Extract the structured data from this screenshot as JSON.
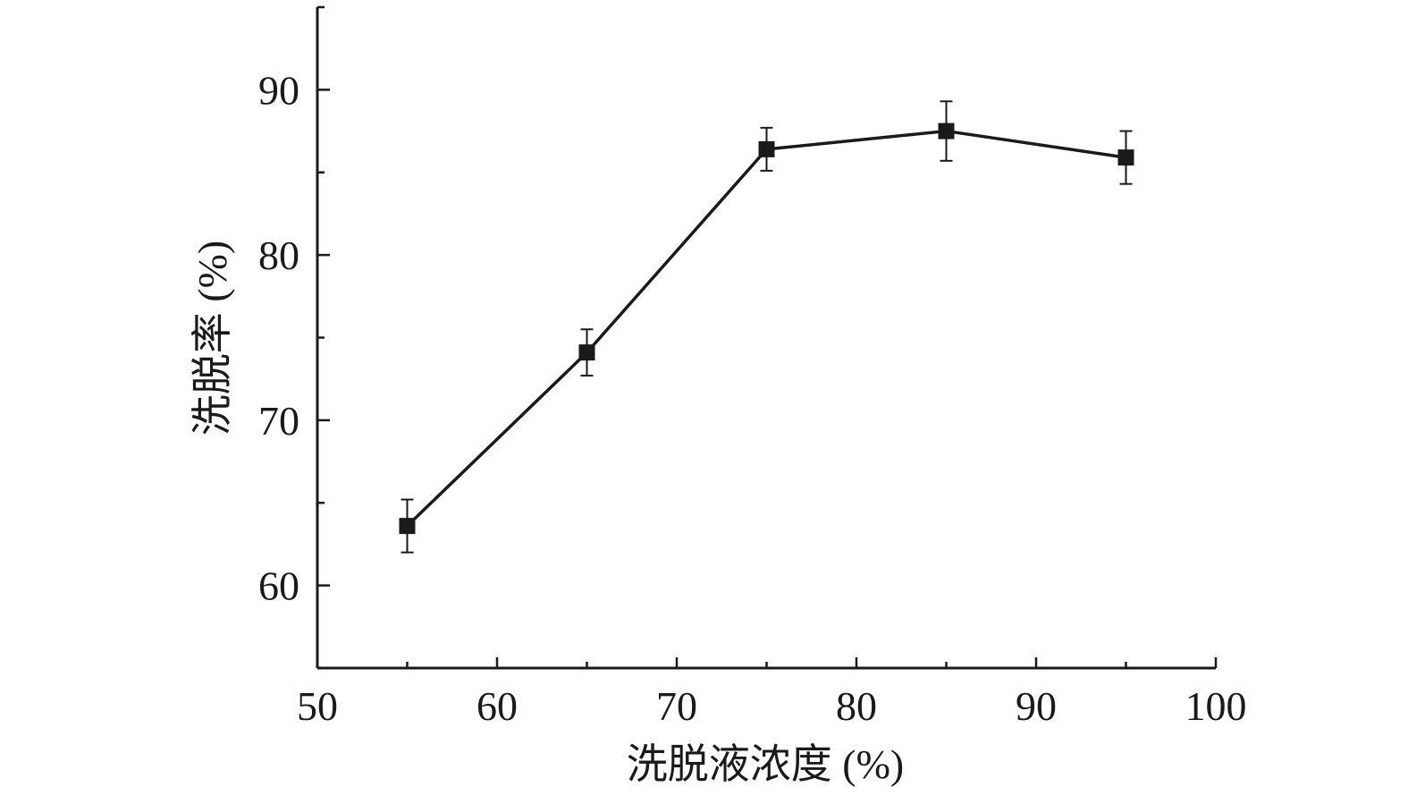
{
  "chart_data": {
    "type": "line",
    "xlabel": "洗脱液浓度 (%)",
    "ylabel": "洗脱率 (%)",
    "xlim": [
      50,
      100
    ],
    "ylim": [
      55,
      95
    ],
    "xticks": [
      50,
      60,
      70,
      80,
      90,
      100
    ],
    "yticks": [
      60,
      70,
      80,
      90
    ],
    "x": [
      55,
      65,
      75,
      85,
      95
    ],
    "series": [
      {
        "values": [
          63.6,
          74.1,
          86.4,
          87.5,
          85.9
        ],
        "errors": [
          1.6,
          1.4,
          1.3,
          1.8,
          1.6
        ],
        "marker": "square",
        "color": "#1a1a1a"
      }
    ],
    "grid": false,
    "legend": "none"
  }
}
